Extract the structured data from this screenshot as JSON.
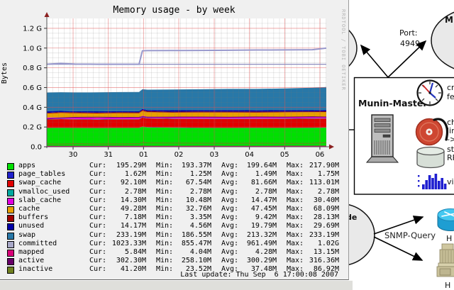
{
  "graph": {
    "title": "Memory usage - by week",
    "watermark": "RRDTOOL / TOBI OETIKER",
    "ylabel": "Bytes",
    "last_update": "Last update: Thu Sep  6 17:00:08 2007",
    "legend": {
      "columns": [
        "Cur:",
        "Min:",
        "Avg:",
        "Max:"
      ],
      "rows": [
        {
          "label": "apps",
          "color": "#00e000",
          "cur": "195.29M",
          "min": "193.37M",
          "avg": "199.64M",
          "max": "217.90M"
        },
        {
          "label": "page_tables",
          "color": "#2020cc",
          "cur": "1.62M",
          "min": "1.25M",
          "avg": "1.49M",
          "max": "1.75M"
        },
        {
          "label": "swap_cache",
          "color": "#e00000",
          "cur": "92.10M",
          "min": "67.54M",
          "avg": "81.66M",
          "max": "113.01M"
        },
        {
          "label": "vmalloc_used",
          "color": "#00a8a0",
          "cur": "2.78M",
          "min": "2.78M",
          "avg": "2.78M",
          "max": "2.78M"
        },
        {
          "label": "slab_cache",
          "color": "#e000e0",
          "cur": "14.30M",
          "min": "10.48M",
          "avg": "14.47M",
          "max": "30.40M"
        },
        {
          "label": "cache",
          "color": "#e8a000",
          "cur": "49.28M",
          "min": "32.76M",
          "avg": "47.45M",
          "max": "68.09M"
        },
        {
          "label": "buffers",
          "color": "#a00000",
          "cur": "7.18M",
          "min": "3.35M",
          "avg": "9.42M",
          "max": "28.13M"
        },
        {
          "label": "unused",
          "color": "#0000a8",
          "cur": "14.17M",
          "min": "4.56M",
          "avg": "19.79M",
          "max": "29.69M"
        },
        {
          "label": "swap",
          "color": "#2878a8",
          "cur": "233.19M",
          "min": "186.55M",
          "avg": "213.32M",
          "max": "233.19M"
        },
        {
          "label": "committed",
          "color": "#a8a8c8",
          "cur": "1023.33M",
          "min": "855.47M",
          "avg": "961.49M",
          "max": "1.02G"
        },
        {
          "label": "mapped",
          "color": "#d80078",
          "cur": "5.84M",
          "min": "4.04M",
          "avg": "4.28M",
          "max": "13.15M"
        },
        {
          "label": "active",
          "color": "#680068",
          "cur": "302.30M",
          "min": "258.10M",
          "avg": "300.29M",
          "max": "316.36M"
        },
        {
          "label": "inactive",
          "color": "#708020",
          "cur": "41.20M",
          "min": "23.52M",
          "avg": "37.48M",
          "max": "86.92M"
        }
      ]
    }
  },
  "chart_data": {
    "type": "area",
    "stacked": true,
    "title": "Memory usage - by week",
    "ylabel": "Bytes",
    "unit": "GiB",
    "ylim": [
      0,
      1.3
    ],
    "grid": true,
    "y_ticks": [
      {
        "v": 0.0,
        "label": "0.0"
      },
      {
        "v": 0.2,
        "label": "0.2 G"
      },
      {
        "v": 0.4,
        "label": "0.4 G"
      },
      {
        "v": 0.6,
        "label": "0.6 G"
      },
      {
        "v": 0.8,
        "label": "0.8 G"
      },
      {
        "v": 1.0,
        "label": "1.0 G"
      },
      {
        "v": 1.2,
        "label": "1.2 G"
      }
    ],
    "x_ticks": [
      {
        "f": 0.094,
        "label": "30"
      },
      {
        "f": 0.22,
        "label": "31"
      },
      {
        "f": 0.346,
        "label": "01"
      },
      {
        "f": 0.472,
        "label": "02"
      },
      {
        "f": 0.599,
        "label": "03"
      },
      {
        "f": 0.725,
        "label": "04"
      },
      {
        "f": 0.851,
        "label": "05"
      },
      {
        "f": 0.977,
        "label": "06"
      }
    ],
    "samples_f": [
      0,
      0.05,
      0.1,
      0.18,
      0.26,
      0.33,
      0.342,
      0.36,
      0.45,
      0.55,
      0.65,
      0.75,
      0.85,
      0.95,
      1.0
    ],
    "areas": [
      {
        "name": "apps",
        "color": "#00e000",
        "values": [
          0.19,
          0.191,
          0.19,
          0.189,
          0.19,
          0.19,
          0.204,
          0.196,
          0.193,
          0.191,
          0.19,
          0.191,
          0.19,
          0.192,
          0.193
        ]
      },
      {
        "name": "page_tables",
        "color": "#2020cc",
        "values": [
          0.002,
          0.002,
          0.002,
          0.002,
          0.002,
          0.002,
          0.002,
          0.002,
          0.002,
          0.002,
          0.002,
          0.002,
          0.002,
          0.002,
          0.002
        ]
      },
      {
        "name": "swap_cache",
        "color": "#e00000",
        "values": [
          0.085,
          0.087,
          0.086,
          0.085,
          0.086,
          0.086,
          0.09,
          0.089,
          0.088,
          0.089,
          0.09,
          0.089,
          0.091,
          0.091,
          0.091
        ]
      },
      {
        "name": "vmalloc_used",
        "color": "#00a8a0",
        "values": [
          0.003,
          0.003,
          0.003,
          0.003,
          0.003,
          0.003,
          0.003,
          0.003,
          0.003,
          0.003,
          0.003,
          0.003,
          0.003,
          0.003,
          0.003
        ]
      },
      {
        "name": "slab_cache",
        "color": "#e000e0",
        "values": [
          0.015,
          0.014,
          0.014,
          0.015,
          0.014,
          0.014,
          0.015,
          0.014,
          0.014,
          0.015,
          0.014,
          0.014,
          0.015,
          0.014,
          0.014
        ]
      },
      {
        "name": "cache",
        "color": "#e8a000",
        "values": [
          0.042,
          0.046,
          0.045,
          0.044,
          0.046,
          0.045,
          0.049,
          0.047,
          0.046,
          0.047,
          0.048,
          0.047,
          0.048,
          0.049,
          0.049
        ]
      },
      {
        "name": "buffers",
        "color": "#a00000",
        "values": [
          0.006,
          0.008,
          0.009,
          0.008,
          0.008,
          0.008,
          0.01,
          0.01,
          0.009,
          0.01,
          0.009,
          0.01,
          0.008,
          0.007,
          0.007
        ]
      },
      {
        "name": "unused",
        "color": "#0000a8",
        "values": [
          0.018,
          0.012,
          0.011,
          0.013,
          0.012,
          0.012,
          0.01,
          0.012,
          0.015,
          0.014,
          0.016,
          0.013,
          0.014,
          0.012,
          0.014
        ]
      },
      {
        "name": "swap",
        "color": "#2878a8",
        "values": [
          0.188,
          0.189,
          0.19,
          0.192,
          0.193,
          0.195,
          0.2,
          0.205,
          0.21,
          0.212,
          0.214,
          0.217,
          0.22,
          0.228,
          0.232
        ]
      }
    ],
    "lines": [
      {
        "name": "mapped",
        "color": "#d80078",
        "width": 1,
        "values": [
          0.006,
          0.005,
          0.005,
          0.005,
          0.006,
          0.005,
          0.006,
          0.005,
          0.005,
          0.006,
          0.005,
          0.005,
          0.006,
          0.006,
          0.006
        ]
      },
      {
        "name": "inactive",
        "color": "#708020",
        "width": 1,
        "values": [
          0.03,
          0.028,
          0.031,
          0.029,
          0.03,
          0.031,
          0.043,
          0.039,
          0.037,
          0.036,
          0.035,
          0.036,
          0.034,
          0.035,
          0.041
        ]
      },
      {
        "name": "active",
        "color": "#680068",
        "width": 1,
        "values": [
          0.281,
          0.292,
          0.298,
          0.3,
          0.297,
          0.299,
          0.303,
          0.3,
          0.301,
          0.302,
          0.3,
          0.303,
          0.301,
          0.304,
          0.302
        ]
      },
      {
        "name": "unlabeled_flat_line",
        "color": "#8c8cbe",
        "width": 1.2,
        "values": [
          0.836,
          0.836,
          0.836,
          0.836,
          0.836,
          0.836,
          0.836,
          0.836,
          0.836,
          0.836,
          0.836,
          0.836,
          0.836,
          0.836,
          0.836
        ]
      },
      {
        "name": "committed",
        "color": "#9898cc",
        "width": 2,
        "values": [
          0.836,
          0.845,
          0.838,
          0.836,
          0.836,
          0.836,
          0.972,
          0.974,
          0.975,
          0.976,
          0.978,
          0.98,
          0.981,
          0.983,
          0.999
        ]
      }
    ]
  },
  "diagram": {
    "top_right_node": {
      "name_visible": "M",
      "port_label_line1": "Port:",
      "port_label_line2": "4949"
    },
    "master_box": {
      "label": "Munin-Master",
      "items": [
        {
          "icon": "clock-icon",
          "text_lines": [
            "cr",
            "fe"
          ]
        },
        {
          "icon": "alarm-disc-icon",
          "text_lines": [
            "ch",
            "lin",
            "->"
          ]
        },
        {
          "icon": "database-cylinder-icon",
          "text_lines": [
            "sto",
            "RR"
          ]
        },
        {
          "icon": "graph-bars-icon",
          "text_lines": [
            "vis"
          ]
        }
      ]
    },
    "bottom_node": {
      "label_visible": "de"
    },
    "snmp_query_label": "SNMP-Query",
    "host_label_top": "H",
    "host_label_bottom": "H"
  }
}
